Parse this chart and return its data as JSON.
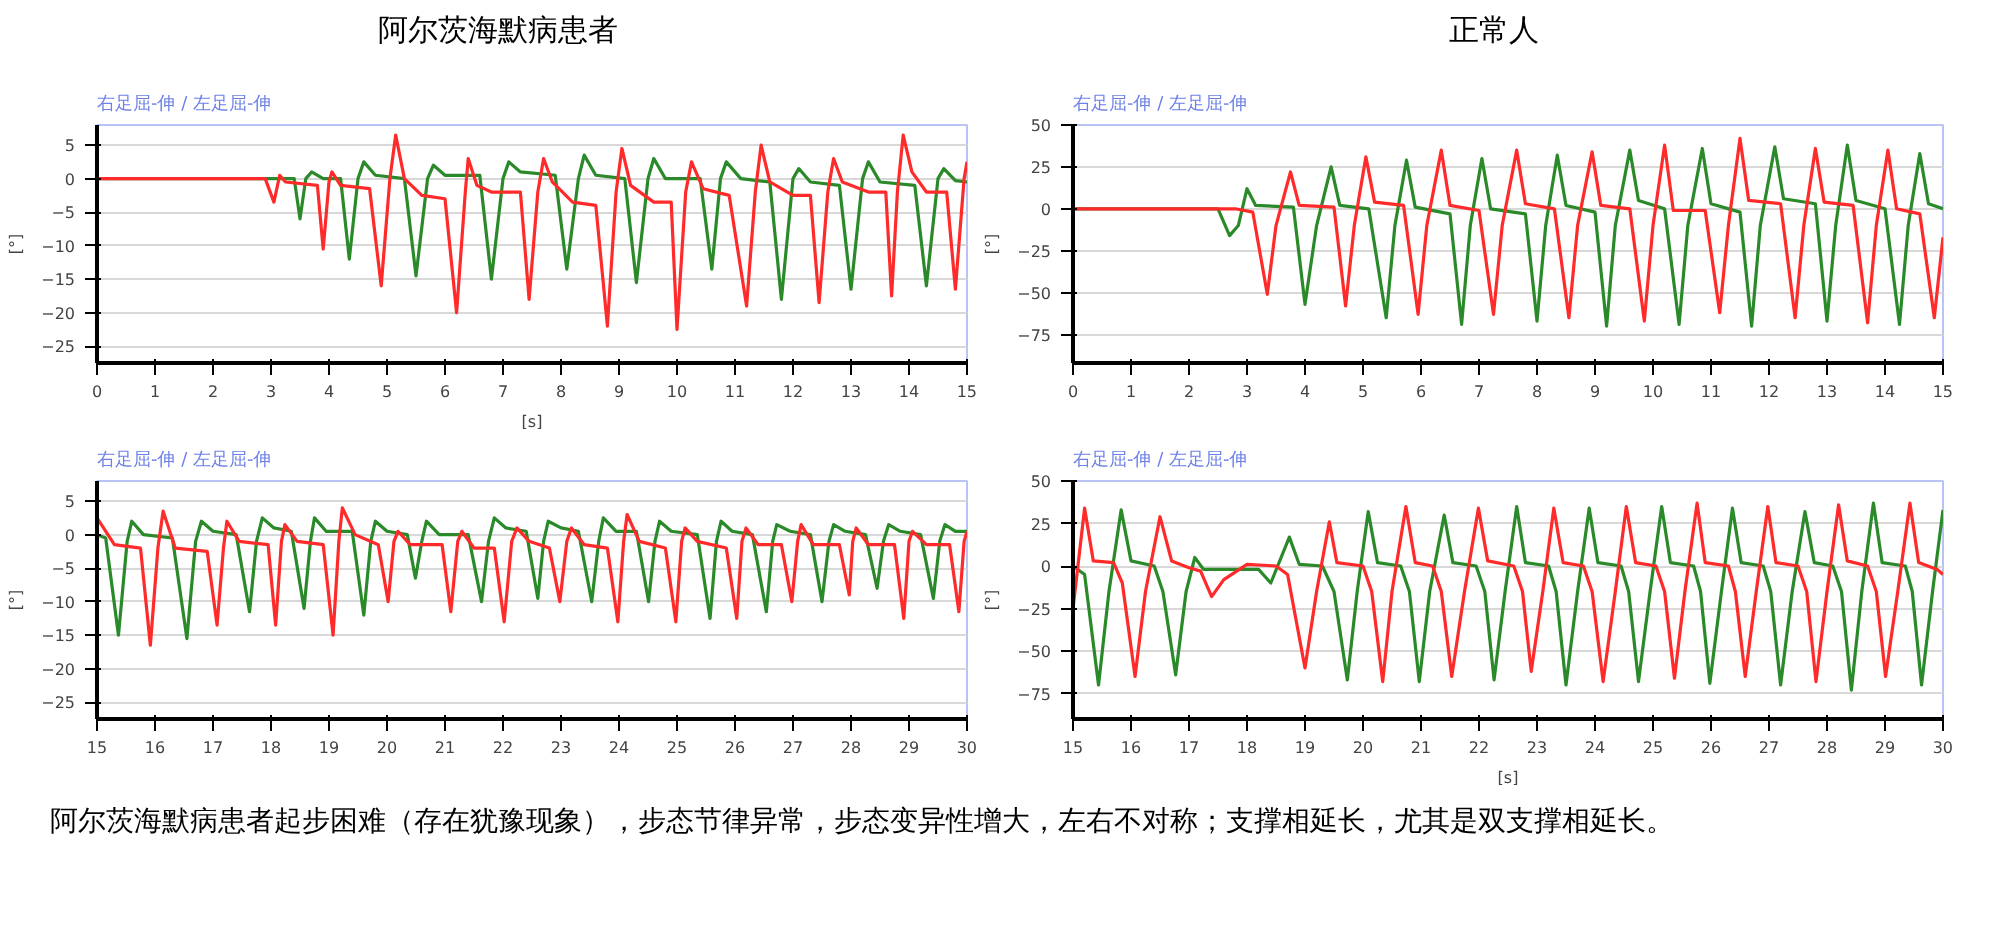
{
  "chart_data": [
    {
      "type": "line",
      "title": "阿尔茨海默病患者",
      "subtitle": "右足屈-伸 / 左足屈-伸",
      "xlabel": "[s]",
      "ylabel": "[°]",
      "xlim": [
        0,
        15
      ],
      "xticks": [
        0,
        1,
        2,
        3,
        4,
        5,
        6,
        7,
        8,
        9,
        10,
        11,
        12,
        13,
        14,
        15
      ],
      "ylim": [
        -27.5,
        8
      ],
      "yticks": [
        -25,
        -20,
        -15,
        -10,
        -5,
        0,
        5
      ],
      "grid": "y",
      "series": [
        {
          "color": "#2a8a2a",
          "x": [
            0,
            3.0,
            3.4,
            3.5,
            3.6,
            3.7,
            3.9,
            4.2,
            4.35,
            4.5,
            4.6,
            4.8,
            5.3,
            5.5,
            5.7,
            5.8,
            6.0,
            6.6,
            6.8,
            7.0,
            7.1,
            7.3,
            7.9,
            8.1,
            8.3,
            8.4,
            8.6,
            9.1,
            9.3,
            9.5,
            9.6,
            9.8,
            10.4,
            10.6,
            10.75,
            10.85,
            11.1,
            11.6,
            11.8,
            12.0,
            12.1,
            12.3,
            12.8,
            13.0,
            13.2,
            13.3,
            13.5,
            14.1,
            14.3,
            14.5,
            14.6,
            14.8,
            15
          ],
          "values": [
            0,
            0,
            0,
            -6,
            0,
            1,
            0,
            0,
            -12,
            0,
            2.5,
            0.5,
            0,
            -14.5,
            0,
            2,
            0.5,
            0.5,
            -15,
            0,
            2.5,
            1,
            0.5,
            -13.5,
            0,
            3.5,
            0.5,
            0,
            -15.5,
            0,
            3,
            0,
            0,
            -13.5,
            0,
            2.5,
            0,
            -0.5,
            -18,
            0,
            1.5,
            -0.5,
            -1,
            -16.5,
            0,
            2.5,
            -0.5,
            -1,
            -16,
            0,
            1.5,
            -0.3,
            -0.5
          ]
        },
        {
          "color": "#ff2a2a",
          "x": [
            0,
            2.9,
            3.05,
            3.15,
            3.25,
            3.8,
            3.9,
            4.0,
            4.05,
            4.2,
            4.7,
            4.9,
            5.05,
            5.15,
            5.3,
            5.6,
            6.0,
            6.2,
            6.35,
            6.4,
            6.55,
            6.8,
            7.3,
            7.45,
            7.6,
            7.7,
            7.85,
            8.2,
            8.6,
            8.8,
            8.95,
            9.05,
            9.2,
            9.6,
            9.9,
            10.0,
            10.15,
            10.25,
            10.45,
            10.9,
            11.2,
            11.35,
            11.45,
            11.6,
            12.0,
            12.3,
            12.45,
            12.6,
            12.7,
            12.85,
            13.3,
            13.6,
            13.7,
            13.8,
            13.9,
            14.05,
            14.3,
            14.65,
            14.8,
            14.95,
            15
          ],
          "values": [
            0,
            0,
            -3.5,
            0.5,
            -0.5,
            -1,
            -10.5,
            -0.5,
            1,
            -1,
            -1.5,
            -16,
            0,
            6.5,
            0,
            -2.5,
            -3,
            -20,
            -2,
            3,
            -1,
            -2,
            -2,
            -18,
            -2,
            3,
            -0.5,
            -3.5,
            -4,
            -22,
            -2,
            4.5,
            -1,
            -3.5,
            -3.5,
            -22.5,
            -2,
            2.5,
            -1.5,
            -2.5,
            -19,
            -2,
            5,
            -0.5,
            -2.5,
            -2.5,
            -18.5,
            -2,
            3,
            -0.5,
            -2,
            -2,
            -17.5,
            -2,
            6.5,
            1,
            -2,
            -2,
            -16.5,
            0,
            2.5
          ]
        }
      ]
    },
    {
      "type": "line",
      "title": "正常人",
      "subtitle": "右足屈-伸 / 左足屈-伸",
      "ylabel": "[°]",
      "xlim": [
        0,
        15
      ],
      "xticks": [
        0,
        1,
        2,
        3,
        4,
        5,
        6,
        7,
        8,
        9,
        10,
        11,
        12,
        13,
        14,
        15
      ],
      "ylim": [
        -92,
        50
      ],
      "yticks": [
        -75,
        -50,
        -25,
        0,
        25,
        50
      ],
      "grid": "y",
      "series": [
        {
          "color": "#2a8a2a",
          "x": [
            0,
            2.5,
            2.7,
            2.85,
            3.0,
            3.15,
            3.8,
            4.0,
            4.2,
            4.45,
            4.6,
            5.1,
            5.4,
            5.55,
            5.75,
            5.9,
            6.5,
            6.7,
            6.85,
            7.05,
            7.2,
            7.8,
            8.0,
            8.15,
            8.35,
            8.5,
            9.0,
            9.2,
            9.35,
            9.6,
            9.75,
            10.2,
            10.45,
            10.6,
            10.85,
            11.0,
            11.5,
            11.7,
            11.85,
            12.1,
            12.25,
            12.8,
            13.0,
            13.15,
            13.35,
            13.5,
            14.0,
            14.25,
            14.4,
            14.6,
            14.75,
            15
          ],
          "values": [
            0,
            0,
            -16,
            -10,
            12,
            2,
            1,
            -57,
            -10,
            25,
            2,
            0,
            -65,
            -10,
            29,
            1,
            -3,
            -69,
            -10,
            30,
            0,
            -3,
            -67,
            -10,
            32,
            2,
            -2,
            -70,
            -10,
            35,
            5,
            0,
            -69,
            -10,
            36,
            3,
            -2,
            -70,
            -10,
            37,
            6,
            3,
            -67,
            -10,
            38,
            5,
            0,
            -69,
            -10,
            33,
            3,
            0
          ]
        },
        {
          "color": "#ff2a2a",
          "x": [
            0,
            2.8,
            3.1,
            3.35,
            3.5,
            3.75,
            3.9,
            4.5,
            4.7,
            4.85,
            5.05,
            5.2,
            5.7,
            5.95,
            6.1,
            6.35,
            6.5,
            7.0,
            7.25,
            7.4,
            7.65,
            7.8,
            8.3,
            8.55,
            8.7,
            8.95,
            9.1,
            9.6,
            9.85,
            10.0,
            10.2,
            10.35,
            10.9,
            11.15,
            11.3,
            11.5,
            11.65,
            12.2,
            12.45,
            12.6,
            12.8,
            12.95,
            13.45,
            13.7,
            13.85,
            14.05,
            14.2,
            14.6,
            14.85,
            15
          ],
          "values": [
            0,
            0,
            -2,
            -51,
            -10,
            22,
            2,
            1,
            -58,
            -10,
            31,
            4,
            2,
            -63,
            -10,
            35,
            2,
            -1,
            -63,
            -10,
            35,
            3,
            0,
            -65,
            -10,
            34,
            2,
            0,
            -67,
            -10,
            38,
            -1,
            -1,
            -62,
            -10,
            42,
            5,
            3,
            -65,
            -10,
            36,
            4,
            2,
            -68,
            -10,
            35,
            0,
            -3,
            -65,
            -17
          ]
        }
      ]
    },
    {
      "type": "line",
      "subtitle": "右足屈-伸 / 左足屈-伸",
      "ylabel": "[°]",
      "xlim": [
        15,
        30
      ],
      "xticks": [
        15,
        16,
        17,
        18,
        19,
        20,
        21,
        22,
        23,
        24,
        25,
        26,
        27,
        28,
        29,
        30
      ],
      "ylim": [
        -27.5,
        8
      ],
      "yticks": [
        -25,
        -20,
        -15,
        -10,
        -5,
        0,
        5
      ],
      "grid": "y",
      "annotations": [
        "阿尔茨海默病患者起步困难（存在犹豫现象），步态节律异常，步态变异性增大，左右不对称；支撑相延长，尤其是双支撑相延长。"
      ],
      "series": [
        {
          "color": "#2a8a2a",
          "x": [
            15,
            15.15,
            15.37,
            15.52,
            15.6,
            15.8,
            16.3,
            16.55,
            16.7,
            16.8,
            17.0,
            17.4,
            17.63,
            17.75,
            17.85,
            18.05,
            18.35,
            18.57,
            18.68,
            18.75,
            18.95,
            19.4,
            19.6,
            19.72,
            19.8,
            20.0,
            20.35,
            20.49,
            20.6,
            20.68,
            20.9,
            21.4,
            21.63,
            21.75,
            21.85,
            22.05,
            22.4,
            22.6,
            22.7,
            22.78,
            23.0,
            23.3,
            23.53,
            23.65,
            23.73,
            23.95,
            24.3,
            24.51,
            24.62,
            24.7,
            24.9,
            25.35,
            25.57,
            25.68,
            25.76,
            25.95,
            26.3,
            26.54,
            26.65,
            26.72,
            26.95,
            27.3,
            27.5,
            27.62,
            27.7,
            27.9,
            28.25,
            28.45,
            28.56,
            28.65,
            28.85,
            29.2,
            29.42,
            29.53,
            29.62,
            29.8,
            30
          ],
          "values": [
            0,
            -0.5,
            -15,
            -1,
            2,
            0,
            -0.5,
            -15.5,
            -1,
            2,
            0.5,
            0,
            -11.5,
            -1,
            2.5,
            1,
            0.5,
            -11,
            -1,
            2.5,
            0.5,
            0.5,
            -12,
            -1,
            2,
            0.5,
            0,
            -6.5,
            -1,
            2,
            0,
            0,
            -10,
            -1,
            2.5,
            1,
            0.5,
            -9.5,
            -1,
            2,
            1,
            0.5,
            -10,
            -1,
            2.5,
            0.5,
            0.5,
            -10,
            -1,
            2,
            0.5,
            0,
            -12.5,
            -1,
            2,
            0.5,
            0,
            -11.5,
            -1,
            1.5,
            0.5,
            0,
            -10,
            -1,
            1.5,
            0.5,
            0,
            -8,
            -1,
            1.5,
            0.5,
            0,
            -9.5,
            -1,
            1.5,
            0.5,
            0.5
          ]
        },
        {
          "color": "#ff2a2a",
          "x": [
            15,
            15.3,
            15.75,
            15.92,
            16.05,
            16.14,
            16.35,
            16.9,
            17.07,
            17.18,
            17.24,
            17.45,
            17.95,
            18.08,
            18.18,
            18.24,
            18.45,
            18.9,
            19.07,
            19.17,
            19.23,
            19.45,
            19.85,
            20.02,
            20.12,
            20.19,
            20.4,
            20.95,
            21.1,
            21.22,
            21.29,
            21.5,
            21.85,
            22.02,
            22.15,
            22.24,
            22.45,
            22.8,
            22.98,
            23.1,
            23.18,
            23.4,
            23.8,
            23.98,
            24.08,
            24.14,
            24.35,
            24.8,
            24.98,
            25.08,
            25.14,
            25.35,
            25.85,
            26.03,
            26.12,
            26.19,
            26.4,
            26.8,
            26.98,
            27.08,
            27.14,
            27.35,
            27.8,
            27.97,
            28.03,
            28.09,
            28.3,
            28.75,
            28.91,
            29.0,
            29.06,
            29.3,
            29.7,
            29.86,
            29.95,
            30
          ],
          "values": [
            2.5,
            -1.5,
            -2,
            -16.5,
            -2,
            3.5,
            -2,
            -2.5,
            -13.5,
            -2,
            2,
            -1,
            -1.5,
            -13.5,
            -1,
            1.5,
            -1,
            -1.5,
            -15,
            -1,
            4,
            0,
            -1.5,
            -10,
            -1,
            0.5,
            -1.5,
            -1.5,
            -11.5,
            -1,
            0.5,
            -2,
            -2,
            -13,
            -1,
            1,
            -1,
            -2,
            -10,
            -1,
            1,
            -1.5,
            -2,
            -13,
            -1,
            3,
            -1,
            -2,
            -13,
            -1,
            1,
            -1,
            -2,
            -12.5,
            -1,
            1,
            -1.5,
            -1.5,
            -10,
            -1,
            1.5,
            -1.5,
            -1.5,
            -9,
            -1,
            1,
            -1.5,
            -1.5,
            -12.5,
            -1,
            0.5,
            -1.5,
            -1.5,
            -11.5,
            -1,
            0.5
          ]
        }
      ]
    },
    {
      "type": "line",
      "subtitle": "右足屈-伸 / 左足屈-伸",
      "xlabel": "[s]",
      "ylabel": "[°]",
      "xlim": [
        15,
        30
      ],
      "xticks": [
        15,
        16,
        17,
        18,
        19,
        20,
        21,
        22,
        23,
        24,
        25,
        26,
        27,
        28,
        29,
        30
      ],
      "ylim": [
        -90,
        50
      ],
      "yticks": [
        -75,
        -50,
        -25,
        0,
        25,
        50
      ],
      "grid": "y",
      "series": [
        {
          "color": "#2a8a2a",
          "x": [
            15,
            15.2,
            15.44,
            15.62,
            15.83,
            16.0,
            16.4,
            16.55,
            16.77,
            16.95,
            17.1,
            17.25,
            18.2,
            18.41,
            18.73,
            18.9,
            19.3,
            19.5,
            19.73,
            19.9,
            20.09,
            20.25,
            20.65,
            20.8,
            20.97,
            21.15,
            21.4,
            21.55,
            21.95,
            22.1,
            22.26,
            22.45,
            22.65,
            22.8,
            23.2,
            23.33,
            23.5,
            23.7,
            23.9,
            24.05,
            24.45,
            24.58,
            24.75,
            24.95,
            25.15,
            25.3,
            25.7,
            25.82,
            25.98,
            26.18,
            26.37,
            26.52,
            26.9,
            27.03,
            27.2,
            27.4,
            27.62,
            27.78,
            28.1,
            28.25,
            28.42,
            28.6,
            28.8,
            28.95,
            29.35,
            29.47,
            29.63,
            29.82,
            30
          ],
          "values": [
            0,
            -5,
            -70,
            -15,
            33,
            3,
            0,
            -15,
            -64,
            -15,
            5,
            -2,
            -2,
            -10,
            17,
            1,
            0,
            -15,
            -67,
            -15,
            32,
            2,
            0,
            -15,
            -68,
            -15,
            30,
            2,
            0,
            -15,
            -67,
            -15,
            35,
            2,
            0,
            -15,
            -70,
            -15,
            34,
            2,
            0,
            -15,
            -68,
            -15,
            35,
            2,
            0,
            -15,
            -69,
            -15,
            34,
            2,
            0,
            -15,
            -70,
            -15,
            32,
            2,
            0,
            -15,
            -73,
            -15,
            37,
            2,
            0,
            -15,
            -70,
            -15,
            33
          ]
        },
        {
          "color": "#ff2a2a",
          "x": [
            15,
            15.2,
            15.35,
            15.7,
            15.85,
            16.07,
            16.25,
            16.5,
            16.7,
            17.0,
            17.2,
            17.39,
            17.6,
            18.0,
            18.5,
            18.7,
            19.0,
            19.2,
            19.42,
            19.55,
            20.0,
            20.15,
            20.34,
            20.5,
            20.74,
            20.9,
            21.2,
            21.35,
            21.53,
            21.75,
            21.99,
            22.15,
            22.6,
            22.75,
            22.9,
            23.1,
            23.29,
            23.45,
            23.8,
            23.95,
            24.14,
            24.35,
            24.54,
            24.7,
            25.05,
            25.2,
            25.37,
            25.55,
            25.76,
            25.9,
            26.3,
            26.42,
            26.59,
            26.78,
            26.98,
            27.12,
            27.5,
            27.65,
            27.81,
            28.0,
            28.2,
            28.35,
            28.7,
            28.85,
            29.01,
            29.22,
            29.43,
            29.58,
            29.9,
            30
          ],
          "values": [
            -25,
            34,
            3,
            2,
            -10,
            -65,
            -15,
            29,
            3,
            -1,
            -3,
            -18,
            -8,
            1,
            0,
            -5,
            -60,
            -15,
            26,
            2,
            0,
            -15,
            -68,
            -15,
            35,
            2,
            0,
            -15,
            -65,
            -15,
            34,
            3,
            0,
            -15,
            -62,
            -15,
            34,
            2,
            0,
            -15,
            -68,
            -15,
            35,
            2,
            0,
            -15,
            -66,
            -15,
            37,
            2,
            0,
            -15,
            -65,
            -15,
            35,
            2,
            0,
            -15,
            -68,
            -15,
            36,
            3,
            0,
            -15,
            -65,
            -15,
            37,
            2,
            -2,
            -5
          ]
        }
      ]
    }
  ]
}
